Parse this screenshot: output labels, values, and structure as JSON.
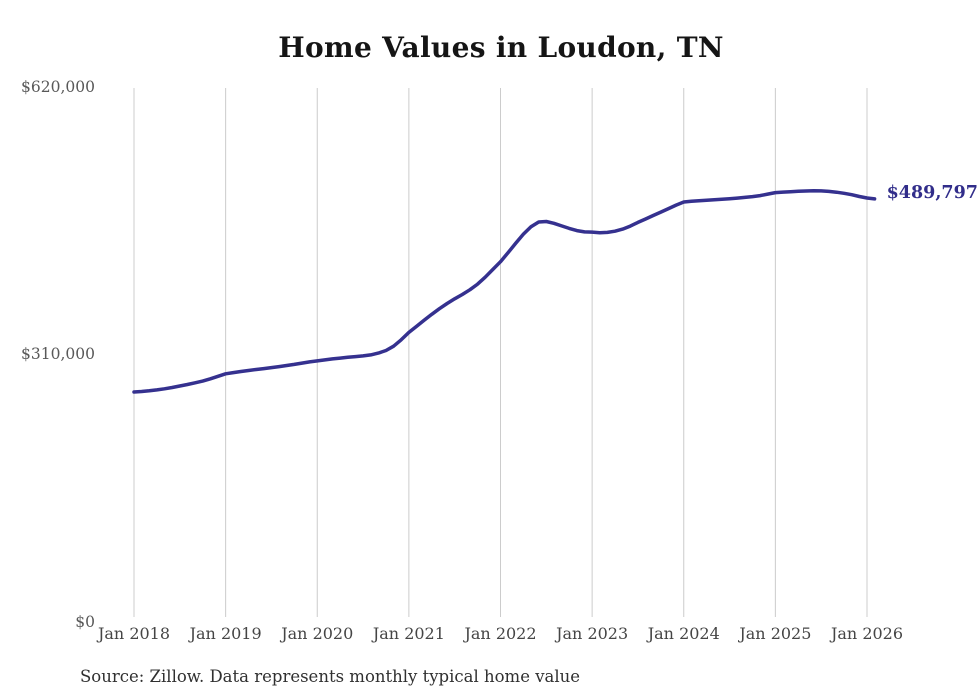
{
  "title": "Home Values in Loudon, TN",
  "latest_value_label": "$489,797",
  "source_note": "Source: Zillow. Data represents monthly typical home value",
  "colors": {
    "background": "#ffffff",
    "line": "#35318f",
    "end_label": "#312d8a",
    "gridline": "#cccccc",
    "title": "#151515",
    "y_tick": "#595959",
    "x_tick": "#454545",
    "source": "#303030"
  },
  "chart_data": {
    "type": "line",
    "title": "Home Values in Loudon, TN",
    "series_name": "Monthly typical home value",
    "grid": "vertical-only",
    "legend": "none",
    "ylim": [
      0,
      620000
    ],
    "ylabel": "",
    "xlabel": "",
    "y_ticks": [
      {
        "label": "$620,000",
        "value": 620000
      },
      {
        "label": "$310,000",
        "value": 310000
      },
      {
        "label": "$0",
        "value": 0
      }
    ],
    "x_ticks": [
      {
        "label": "Jan 2018",
        "month_index": 0
      },
      {
        "label": "Jan 2019",
        "month_index": 12
      },
      {
        "label": "Jan 2020",
        "month_index": 24
      },
      {
        "label": "Jan 2021",
        "month_index": 36
      },
      {
        "label": "Jan 2022",
        "month_index": 48
      },
      {
        "label": "Jan 2023",
        "month_index": 60
      },
      {
        "label": "Jan 2024",
        "month_index": 72
      },
      {
        "label": "Jan 2025",
        "month_index": 84
      },
      {
        "label": "Jan 2026",
        "month_index": 96
      }
    ],
    "months": [
      "2018-01",
      "2018-02",
      "2018-03",
      "2018-04",
      "2018-05",
      "2018-06",
      "2018-07",
      "2018-08",
      "2018-09",
      "2018-10",
      "2018-11",
      "2018-12",
      "2019-01",
      "2019-02",
      "2019-03",
      "2019-04",
      "2019-05",
      "2019-06",
      "2019-07",
      "2019-08",
      "2019-09",
      "2019-10",
      "2019-11",
      "2019-12",
      "2020-01",
      "2020-02",
      "2020-03",
      "2020-04",
      "2020-05",
      "2020-06",
      "2020-07",
      "2020-08",
      "2020-09",
      "2020-10",
      "2020-11",
      "2020-12",
      "2021-01",
      "2021-02",
      "2021-03",
      "2021-04",
      "2021-05",
      "2021-06",
      "2021-07",
      "2021-08",
      "2021-09",
      "2021-10",
      "2021-11",
      "2021-12",
      "2022-01",
      "2022-02",
      "2022-03",
      "2022-04",
      "2022-05",
      "2022-06",
      "2022-07",
      "2022-08",
      "2022-09",
      "2022-10",
      "2022-11",
      "2022-12",
      "2023-01",
      "2023-02",
      "2023-03",
      "2023-04",
      "2023-05",
      "2023-06",
      "2023-07",
      "2023-08",
      "2023-09",
      "2023-10",
      "2023-11",
      "2023-12",
      "2024-01",
      "2024-02",
      "2024-03",
      "2024-04",
      "2024-05",
      "2024-06",
      "2024-07",
      "2024-08",
      "2024-09",
      "2024-10",
      "2024-11",
      "2024-12",
      "2025-01",
      "2025-02",
      "2025-03",
      "2025-04",
      "2025-05",
      "2025-06",
      "2025-07",
      "2025-08",
      "2025-09",
      "2025-10",
      "2025-11",
      "2025-12",
      "2026-01",
      "2026-02"
    ],
    "values": [
      266000,
      266500,
      267300,
      268400,
      269700,
      271200,
      272900,
      274700,
      276600,
      278600,
      281300,
      284200,
      287000,
      288400,
      289700,
      290900,
      292000,
      293100,
      294200,
      295400,
      296700,
      298000,
      299400,
      300800,
      302000,
      303200,
      304300,
      305300,
      306200,
      307000,
      307800,
      309000,
      311000,
      314000,
      319000,
      326500,
      335000,
      342000,
      349000,
      356000,
      362500,
      368500,
      374000,
      379000,
      384500,
      391000,
      399000,
      408000,
      417000,
      427500,
      438500,
      449000,
      457500,
      463000,
      463500,
      461500,
      458500,
      455500,
      453000,
      451500,
      451300,
      450600,
      450900,
      452300,
      454800,
      458200,
      462500,
      466400,
      470500,
      474500,
      478500,
      482500,
      486200,
      487000,
      487600,
      488200,
      488800,
      489400,
      490000,
      490700,
      491500,
      492400,
      493600,
      495300,
      497000,
      497600,
      498100,
      498500,
      498900,
      499200,
      499000,
      498400,
      497500,
      496200,
      494600,
      492500,
      490800,
      489797
    ],
    "last_value": 489797,
    "annotation": {
      "text": "$489,797",
      "attached_to": "last-point"
    }
  }
}
